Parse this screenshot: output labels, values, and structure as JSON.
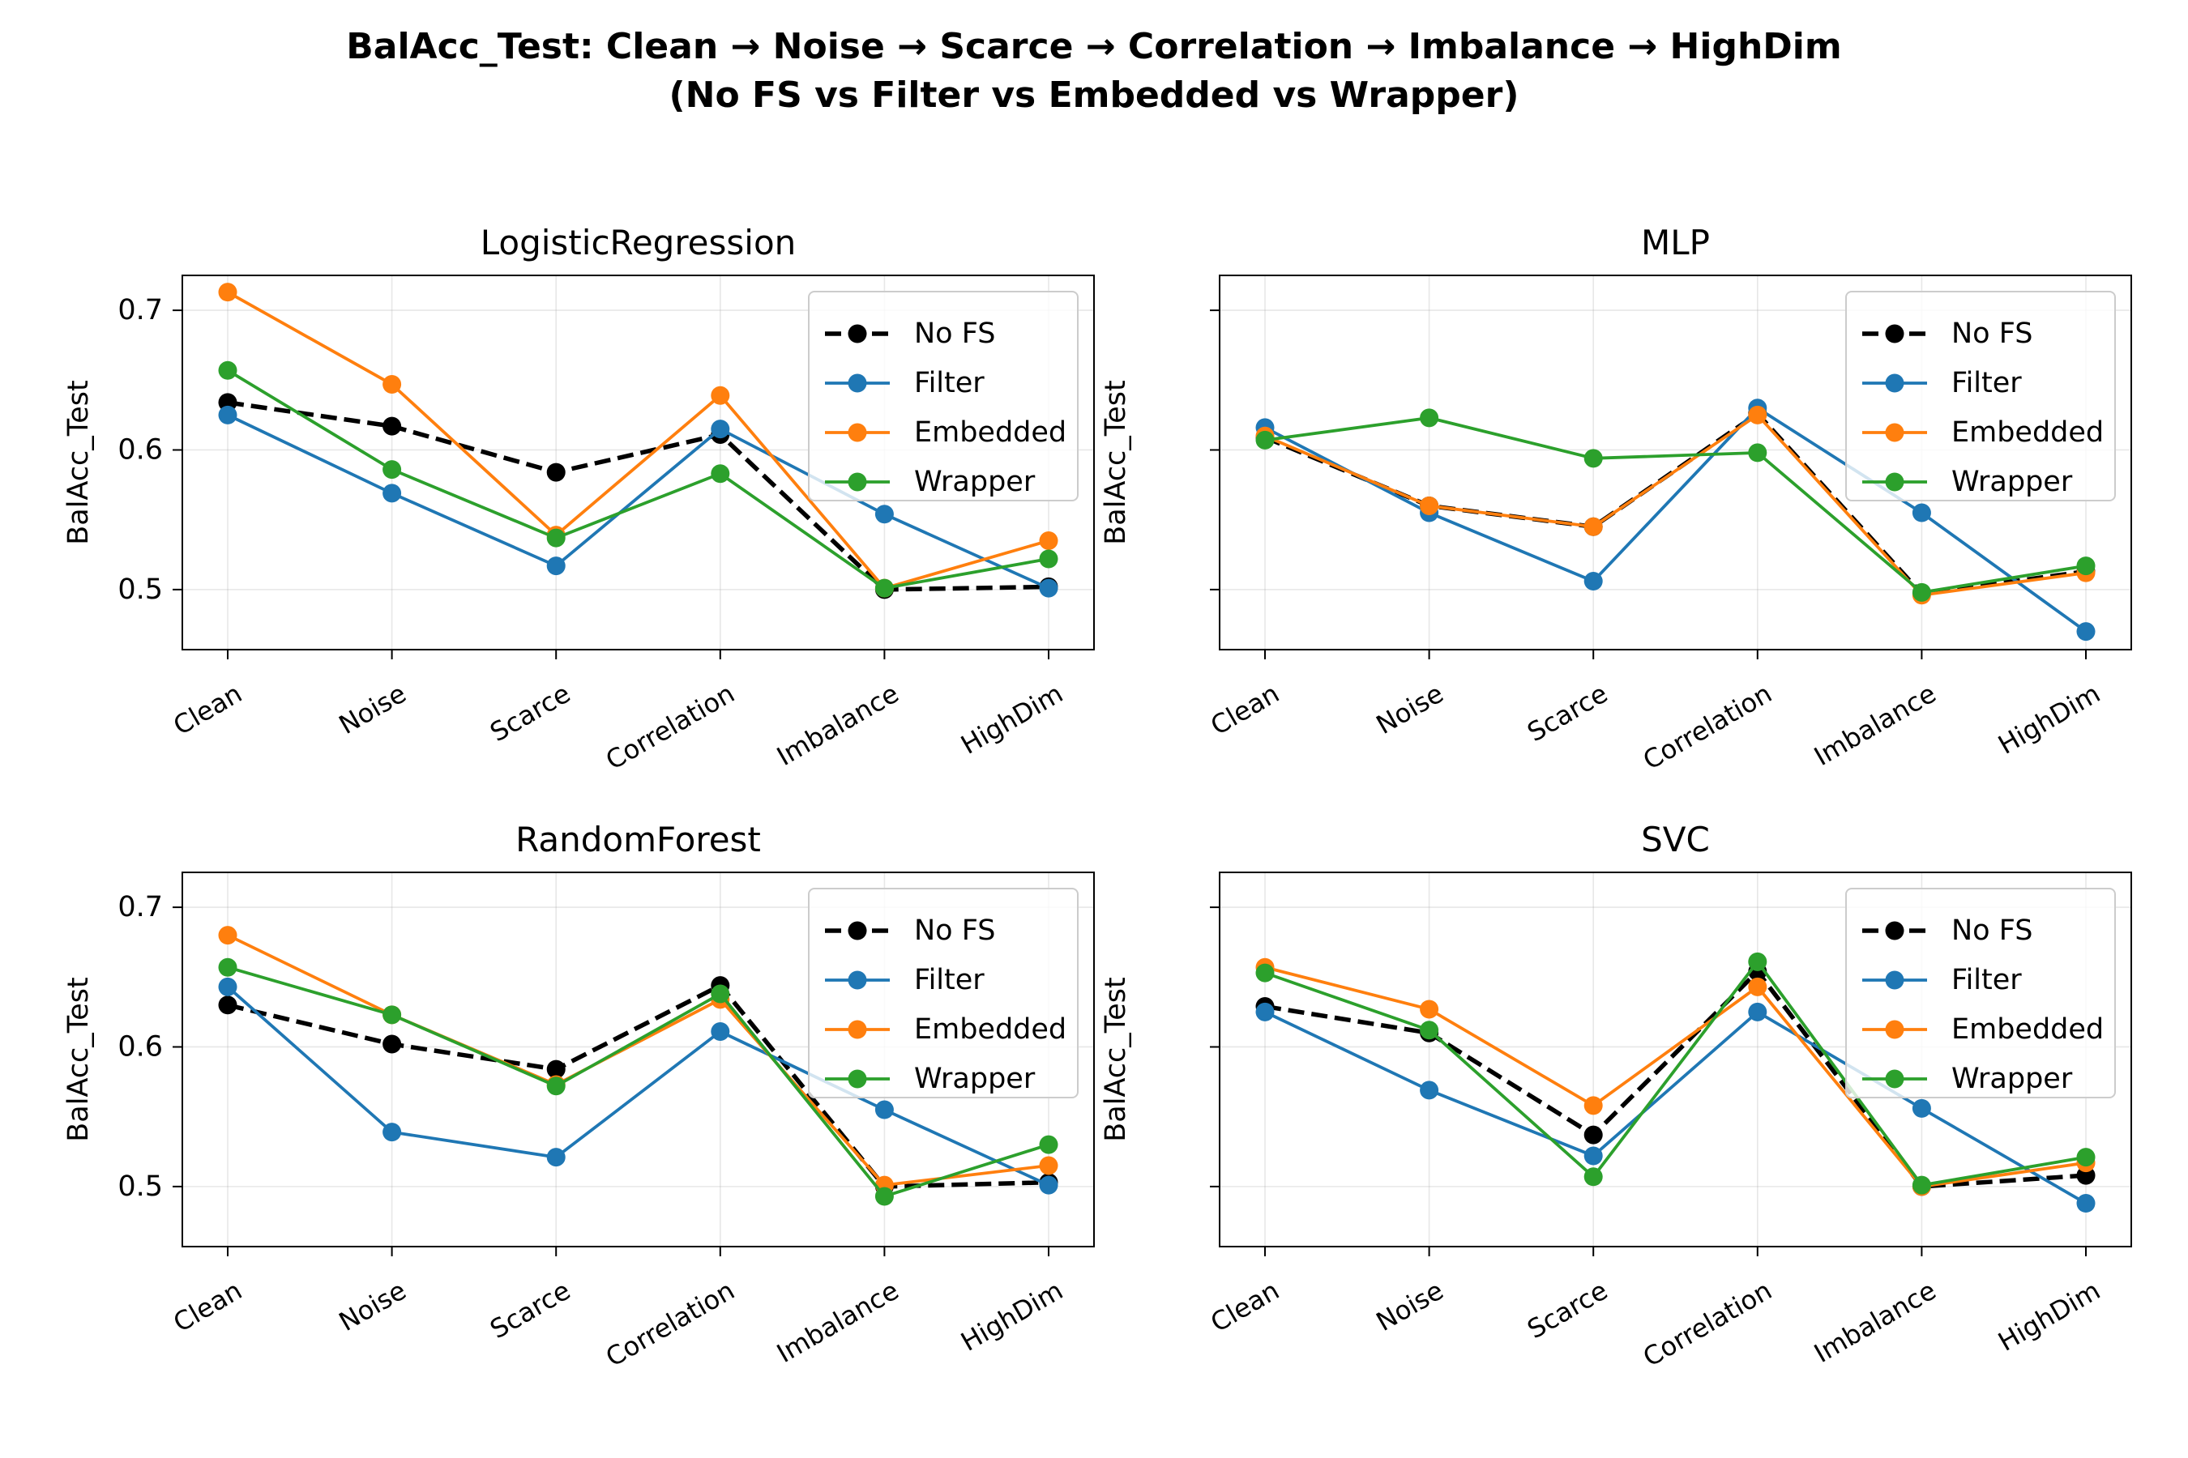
{
  "figure": {
    "title_line1": "BalAcc_Test: Clean → Noise → Scarce → Correlation → Imbalance → HighDim",
    "title_line2": "(No FS vs Filter vs Embedded vs Wrapper)"
  },
  "colors": {
    "No FS": "#000000",
    "Filter": "#1f77b4",
    "Embedded": "#ff7f0e",
    "Wrapper": "#2ca02c"
  },
  "chart_data": [
    {
      "type": "line",
      "title": "LogisticRegression",
      "xlabel": "",
      "ylabel": "BalAcc_Test",
      "categories": [
        "Clean",
        "Noise",
        "Scarce",
        "Correlation",
        "Imbalance",
        "HighDim"
      ],
      "ylim": [
        0.457,
        0.725
      ],
      "yticks": [
        0.5,
        0.6,
        0.7
      ],
      "show_ytick_labels": true,
      "grid": true,
      "legend": "upper right",
      "series": [
        {
          "name": "No FS",
          "values": [
            0.634,
            0.617,
            0.584,
            0.611,
            0.5,
            0.502
          ],
          "dashed": true
        },
        {
          "name": "Filter",
          "values": [
            0.625,
            0.569,
            0.517,
            0.615,
            0.554,
            0.501
          ]
        },
        {
          "name": "Embedded",
          "values": [
            0.713,
            0.647,
            0.539,
            0.639,
            0.501,
            0.535
          ]
        },
        {
          "name": "Wrapper",
          "values": [
            0.657,
            0.586,
            0.537,
            0.583,
            0.501,
            0.522
          ]
        }
      ]
    },
    {
      "type": "line",
      "title": "MLP",
      "xlabel": "",
      "ylabel": "BalAcc_Test",
      "categories": [
        "Clean",
        "Noise",
        "Scarce",
        "Correlation",
        "Imbalance",
        "HighDim"
      ],
      "ylim": [
        0.457,
        0.725
      ],
      "yticks": [
        0.5,
        0.6,
        0.7
      ],
      "show_ytick_labels": false,
      "grid": true,
      "legend": "upper right",
      "series": [
        {
          "name": "No FS",
          "values": [
            0.609,
            0.56,
            0.545,
            0.626,
            0.497,
            0.513
          ],
          "dashed": true
        },
        {
          "name": "Filter",
          "values": [
            0.616,
            0.555,
            0.506,
            0.63,
            0.555,
            0.47
          ]
        },
        {
          "name": "Embedded",
          "values": [
            0.61,
            0.56,
            0.545,
            0.625,
            0.496,
            0.512
          ]
        },
        {
          "name": "Wrapper",
          "values": [
            0.607,
            0.623,
            0.594,
            0.598,
            0.498,
            0.517
          ]
        }
      ]
    },
    {
      "type": "line",
      "title": "RandomForest",
      "xlabel": "",
      "ylabel": "BalAcc_Test",
      "categories": [
        "Clean",
        "Noise",
        "Scarce",
        "Correlation",
        "Imbalance",
        "HighDim"
      ],
      "ylim": [
        0.457,
        0.725
      ],
      "yticks": [
        0.5,
        0.6,
        0.7
      ],
      "show_ytick_labels": true,
      "grid": true,
      "legend": "upper right",
      "series": [
        {
          "name": "No FS",
          "values": [
            0.63,
            0.602,
            0.584,
            0.644,
            0.5,
            0.503
          ],
          "dashed": true
        },
        {
          "name": "Filter",
          "values": [
            0.643,
            0.539,
            0.521,
            0.611,
            0.555,
            0.501
          ]
        },
        {
          "name": "Embedded",
          "values": [
            0.68,
            0.623,
            0.573,
            0.634,
            0.501,
            0.515
          ]
        },
        {
          "name": "Wrapper",
          "values": [
            0.657,
            0.623,
            0.572,
            0.638,
            0.493,
            0.53
          ]
        }
      ]
    },
    {
      "type": "line",
      "title": "SVC",
      "xlabel": "",
      "ylabel": "BalAcc_Test",
      "categories": [
        "Clean",
        "Noise",
        "Scarce",
        "Correlation",
        "Imbalance",
        "HighDim"
      ],
      "ylim": [
        0.457,
        0.725
      ],
      "yticks": [
        0.5,
        0.6,
        0.7
      ],
      "show_ytick_labels": false,
      "grid": true,
      "legend": "upper right",
      "series": [
        {
          "name": "No FS",
          "values": [
            0.629,
            0.61,
            0.537,
            0.654,
            0.5,
            0.508
          ],
          "dashed": true
        },
        {
          "name": "Filter",
          "values": [
            0.625,
            0.569,
            0.522,
            0.625,
            0.556,
            0.488
          ]
        },
        {
          "name": "Embedded",
          "values": [
            0.657,
            0.627,
            0.558,
            0.643,
            0.5,
            0.517
          ]
        },
        {
          "name": "Wrapper",
          "values": [
            0.653,
            0.612,
            0.507,
            0.661,
            0.501,
            0.521
          ]
        }
      ]
    }
  ]
}
